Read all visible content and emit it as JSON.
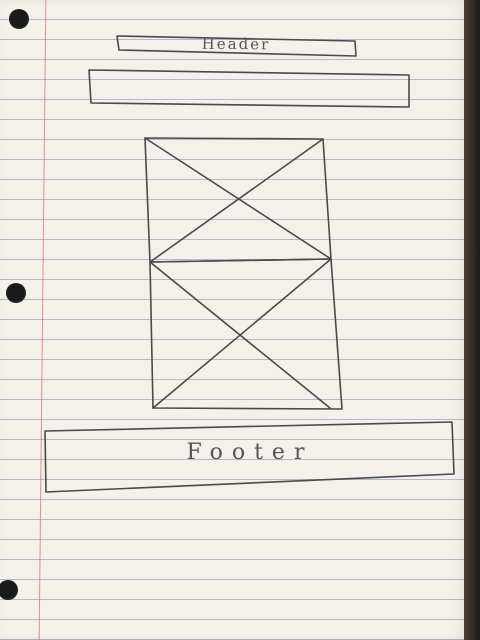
{
  "sketch": {
    "header_text": "Header",
    "footer_text": "Footer"
  }
}
